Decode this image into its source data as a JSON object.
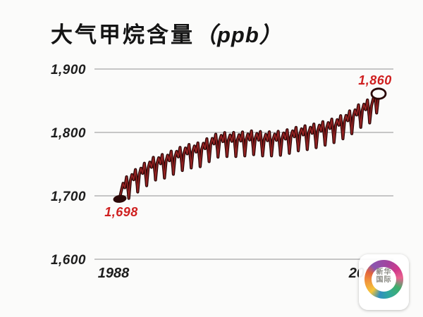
{
  "title": {
    "text": "大气甲烷含量",
    "unit": "（ppb）"
  },
  "chart_data": {
    "type": "line",
    "title": "大气甲烷含量 (ppb)",
    "xlabel": "",
    "ylabel": "ppb",
    "x_tick_labels": [
      "1988",
      "2017"
    ],
    "y_ticks": [
      1900,
      1800,
      1700,
      1600
    ],
    "y_tick_labels": [
      "1,900",
      "1,800",
      "1,700",
      "1,600"
    ],
    "ylim": [
      1600,
      1900
    ],
    "x_range_years": [
      1988,
      2017
    ],
    "grid": "horizontal",
    "legend": "none",
    "series": [
      {
        "name": "大气甲烷含量",
        "years": [
          1988,
          1989,
          1990,
          1991,
          1992,
          1993,
          1994,
          1995,
          1996,
          1997,
          1998,
          1999,
          2000,
          2001,
          2002,
          2003,
          2004,
          2005,
          2006,
          2007,
          2008,
          2009,
          2010,
          2011,
          2012,
          2013,
          2014,
          2015,
          2016,
          2017
        ],
        "annual_values": [
          1698,
          1714,
          1724,
          1734,
          1743,
          1746,
          1752,
          1758,
          1762,
          1764,
          1772,
          1779,
          1780,
          1780,
          1781,
          1783,
          1781,
          1781,
          1782,
          1785,
          1789,
          1791,
          1794,
          1798,
          1802,
          1808,
          1816,
          1826,
          1833,
          1848
        ],
        "end_value": 1860
      }
    ],
    "seasonal_pattern": [
      [
        0.0,
        -18
      ],
      [
        0.18,
        8
      ],
      [
        0.36,
        16
      ],
      [
        0.55,
        6
      ],
      [
        0.75,
        20
      ],
      [
        0.95,
        -8
      ]
    ],
    "seasonal_pattern_last": [
      [
        0.0,
        -18
      ],
      [
        0.2,
        6
      ],
      [
        0.4,
        14
      ],
      [
        0.6,
        18
      ],
      [
        0.78,
        -14
      ],
      [
        0.92,
        2
      ]
    ],
    "start_label": {
      "text": "1,698",
      "value": 1698,
      "year": 1988
    },
    "end_label": {
      "text": "1,860",
      "value": 1860,
      "year": 2017
    },
    "colors": {
      "line_dark": "#2b0808",
      "line_red": "#952222",
      "grid": "#c6c6c6",
      "value_label": "#cf1f1f",
      "axis_text": "#1d1d1d",
      "background": "#fbfbfa"
    }
  },
  "watermark": {
    "line1": "新华",
    "line2": "国际"
  }
}
